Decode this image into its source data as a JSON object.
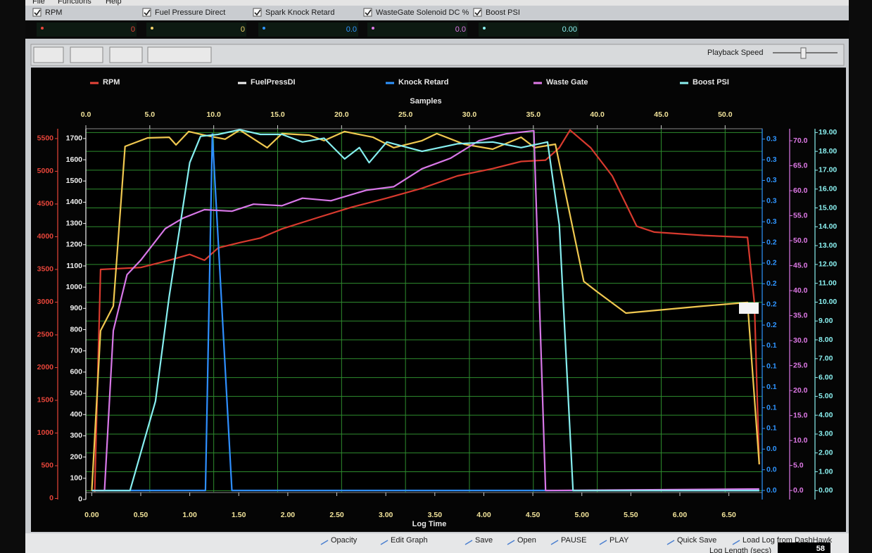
{
  "menu": [
    "File",
    "Functions",
    "Help"
  ],
  "channels": [
    {
      "label": "RPM",
      "readout": "0",
      "color": "#e8453a"
    },
    {
      "label": "Fuel Pressure Direct",
      "readout": "0",
      "color": "#f3d36a"
    },
    {
      "label": "Spark Knock Retard",
      "readout": "0.0",
      "color": "#2f95ff"
    },
    {
      "label": "WasteGate Solenoid DC %",
      "readout": "0.0",
      "color": "#e07ae8"
    },
    {
      "label": "Boost PSI",
      "readout": "0.00",
      "color": "#8af0f0"
    }
  ],
  "playback_speed": "Playback Speed",
  "chart_data": {
    "type": "line",
    "xlabel": "Log Time",
    "xlim": [
      -0.06,
      6.84
    ],
    "xticks": [
      {
        "value": 0,
        "label": "0.00"
      },
      {
        "value": 0.5,
        "label": "0.50"
      },
      {
        "value": 1,
        "label": "1.00"
      },
      {
        "value": 1.5,
        "label": "1.50"
      },
      {
        "value": 2,
        "label": "2.00"
      },
      {
        "value": 2.5,
        "label": "2.50"
      },
      {
        "value": 3,
        "label": "3.00"
      },
      {
        "value": 3.5,
        "label": "3.50"
      },
      {
        "value": 4,
        "label": "4.00"
      },
      {
        "value": 4.5,
        "label": "4.50"
      },
      {
        "value": 5,
        "label": "5.00"
      },
      {
        "value": 5.5,
        "label": "5.50"
      },
      {
        "value": 6,
        "label": "6.00"
      },
      {
        "value": 6.5,
        "label": "6.50"
      }
    ],
    "x2label": "Samples",
    "x2lim": [
      0,
      52.9
    ],
    "x2ticks": [
      {
        "value": 0,
        "label": "0.0"
      },
      {
        "value": 5,
        "label": "5.0"
      },
      {
        "value": 10,
        "label": "10.0"
      },
      {
        "value": 15,
        "label": "15.0"
      },
      {
        "value": 20,
        "label": "20.0"
      },
      {
        "value": 25,
        "label": "25.0"
      },
      {
        "value": 30,
        "label": "30.0"
      },
      {
        "value": 35,
        "label": "35.0"
      },
      {
        "value": 40,
        "label": "40.0"
      },
      {
        "value": 45,
        "label": "45.0"
      },
      {
        "value": 50,
        "label": "50.0"
      }
    ],
    "grid": true,
    "grid_axis": 4,
    "axes": [
      {
        "color": "#e8453a",
        "ylim": [
          91,
          5650
        ],
        "yticks": [
          0,
          500,
          1000,
          1500,
          2000,
          2500,
          3000,
          3500,
          4000,
          4500,
          5000,
          5500
        ]
      },
      {
        "color": "#f2f2f2",
        "ylim": [
          33,
          1746
        ],
        "yticks": [
          0,
          100,
          200,
          300,
          400,
          500,
          600,
          700,
          800,
          900,
          1000,
          1100,
          1200,
          1300,
          1400,
          1500,
          1600,
          1700
        ]
      },
      {
        "color": "#2f95ff",
        "ylim": [
          -0.002,
          0.35
        ],
        "yticks": [
          {
            "value": 0,
            "label": "0.0"
          },
          {
            "value": 0.02,
            "label": "0.0"
          },
          {
            "value": 0.04,
            "label": "0.0"
          },
          {
            "value": 0.06,
            "label": "0.1"
          },
          {
            "value": 0.08,
            "label": "0.1"
          },
          0.1,
          {
            "value": 0.12,
            "label": "0.1"
          },
          {
            "value": 0.14,
            "label": "0.1"
          },
          {
            "value": 0.16,
            "label": "0.2"
          },
          {
            "value": 0.18,
            "label": "0.2"
          },
          0.2,
          {
            "value": 0.22,
            "label": "0.2"
          },
          {
            "value": 0.24,
            "label": "0.2"
          },
          {
            "value": 0.26,
            "label": "0.3"
          },
          {
            "value": 0.28,
            "label": "0.3"
          },
          0.3,
          {
            "value": 0.32,
            "label": "0.3"
          },
          {
            "value": 0.34,
            "label": "0.3"
          }
        ]
      },
      {
        "color": "#e07ae8",
        "ylim": [
          -0.4,
          72.4
        ],
        "yticks": [
          {
            "value": 0,
            "label": "0.0"
          },
          {
            "value": 5,
            "label": "5.0"
          },
          {
            "value": 10,
            "label": "10.0"
          },
          {
            "value": 15,
            "label": "15.0"
          },
          {
            "value": 20,
            "label": "20.0"
          },
          {
            "value": 25,
            "label": "25.0"
          },
          {
            "value": 30,
            "label": "30.0"
          },
          {
            "value": 35,
            "label": "35.0"
          },
          {
            "value": 40,
            "label": "40.0"
          },
          {
            "value": 45,
            "label": "45.0"
          },
          {
            "value": 50,
            "label": "50.0"
          },
          {
            "value": 55,
            "label": "55.0"
          },
          {
            "value": 60,
            "label": "60.0"
          },
          {
            "value": 65,
            "label": "65.0"
          },
          {
            "value": 70,
            "label": "70.0"
          }
        ]
      },
      {
        "color": "#8af0f0",
        "ylim": [
          -0.1,
          19.2
        ],
        "yticks": [
          {
            "value": 0,
            "label": "0.00"
          },
          {
            "value": 1,
            "label": "1.00"
          },
          {
            "value": 2,
            "label": "2.00"
          },
          {
            "value": 3,
            "label": "3.00"
          },
          {
            "value": 4,
            "label": "4.00"
          },
          {
            "value": 5,
            "label": "5.00"
          },
          {
            "value": 6,
            "label": "6.00"
          },
          {
            "value": 7,
            "label": "7.00"
          },
          {
            "value": 8,
            "label": "8.00"
          },
          {
            "value": 9,
            "label": "9.00"
          },
          {
            "value": 10,
            "label": "10.00"
          },
          {
            "value": 11,
            "label": "11.00"
          },
          {
            "value": 12,
            "label": "12.00"
          },
          {
            "value": 13,
            "label": "13.00"
          },
          {
            "value": 14,
            "label": "14.00"
          },
          {
            "value": 15,
            "label": "15.00"
          },
          {
            "value": 16,
            "label": "16.00"
          },
          {
            "value": 17,
            "label": "17.00"
          },
          {
            "value": 18,
            "label": "18.00"
          },
          {
            "value": 19,
            "label": "19.00"
          }
        ]
      }
    ],
    "series": [
      {
        "name": "RPM",
        "color": "#d83a2e",
        "axis": 0,
        "x": [
          0.03,
          0.09,
          0.5,
          0.79,
          1.0,
          1.15,
          1.29,
          1.51,
          1.72,
          1.94,
          2.3,
          2.65,
          3.01,
          3.37,
          3.73,
          4.09,
          4.38,
          4.63,
          4.77,
          4.88,
          5.09,
          5.31,
          5.45,
          5.56,
          5.74,
          6.24,
          6.69,
          6.76,
          6.81
        ],
        "values": [
          100,
          3500,
          3530,
          3640,
          3730,
          3640,
          3830,
          3910,
          3980,
          4120,
          4290,
          4450,
          4590,
          4740,
          4930,
          5040,
          5150,
          5170,
          5360,
          5630,
          5360,
          4930,
          4500,
          4160,
          4070,
          4020,
          3990,
          2990,
          520
        ]
      },
      {
        "name": "FuelPressDI",
        "color": "#f0c850",
        "axis": 1,
        "x": [
          0,
          0.09,
          0.22,
          0.34,
          0.57,
          0.79,
          0.86,
          0.99,
          1.15,
          1.36,
          1.51,
          1.79,
          1.94,
          2.22,
          2.37,
          2.58,
          2.87,
          3.08,
          3.37,
          3.52,
          3.8,
          4.09,
          4.38,
          4.52,
          4.73,
          5.02,
          5.16,
          5.45,
          6.24,
          6.69,
          6.81
        ],
        "values": [
          40,
          795,
          911,
          1663,
          1703,
          1706,
          1670,
          1733,
          1716,
          1697,
          1740,
          1657,
          1723,
          1716,
          1690,
          1733,
          1706,
          1657,
          1690,
          1723,
          1673,
          1650,
          1706,
          1657,
          1673,
          1027,
          977,
          878,
          911,
          928,
          166
        ]
      },
      {
        "name": "Knock Retard",
        "color": "#2f8fff",
        "axis": 2,
        "x": [
          0,
          1.16,
          1.23,
          1.43,
          6.81
        ],
        "values": [
          0,
          0,
          0.345,
          0,
          0
        ]
      },
      {
        "name": "Waste Gate",
        "color": "#d878e8",
        "axis": 3,
        "x": [
          0,
          0.13,
          0.22,
          0.36,
          0.5,
          0.75,
          0.93,
          1.15,
          1.43,
          1.65,
          1.94,
          2.15,
          2.44,
          2.8,
          3.08,
          3.37,
          3.66,
          3.95,
          4.23,
          4.51,
          4.63,
          6.81
        ],
        "values": [
          0,
          0,
          32,
          43.2,
          46.1,
          52.4,
          54.5,
          56.2,
          55.9,
          57.3,
          57,
          58.5,
          58,
          60.1,
          60.8,
          64.4,
          66.5,
          70,
          71.4,
          72,
          0,
          0.3
        ]
      },
      {
        "name": "Boost PSI",
        "color": "#86eef0",
        "axis": 4,
        "x": [
          0,
          0.39,
          0.65,
          0.79,
          1.0,
          1.11,
          1.29,
          1.51,
          1.72,
          1.94,
          2.15,
          2.37,
          2.58,
          2.73,
          2.83,
          3.01,
          3.37,
          3.73,
          4.09,
          4.38,
          4.65,
          4.77,
          4.91,
          6.81
        ],
        "values": [
          0,
          0,
          4.74,
          10.3,
          17.4,
          18.8,
          18.9,
          19.15,
          18.9,
          18.9,
          18.5,
          18.7,
          17.6,
          18.2,
          17.4,
          18.5,
          18,
          18.4,
          18.5,
          18.2,
          18.5,
          14.1,
          0,
          0
        ]
      }
    ]
  },
  "buttons": [
    "Opacity",
    "Edit Graph",
    "Save",
    "Open",
    "PAUSE",
    "PLAY",
    "Quick Save",
    "Load Log from DashHawk"
  ],
  "log_length": {
    "label": "Log Length (secs)",
    "value": "58"
  }
}
